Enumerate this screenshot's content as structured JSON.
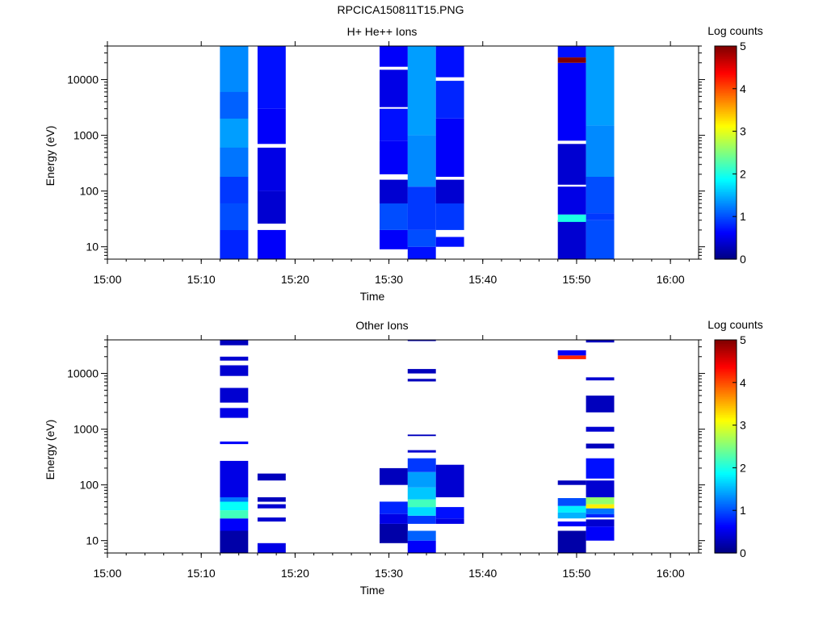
{
  "figure_title": "RPCICA150811T15.PNG",
  "chart_data": [
    {
      "type": "heatmap",
      "title": "H+ He++ Ions",
      "xlabel": "Time",
      "ylabel": "Energy (eV)",
      "x_range": [
        "15:00",
        "16:03"
      ],
      "y_scale": "log",
      "ylim": [
        6,
        40000
      ],
      "xticks": [
        "15:00",
        "15:10",
        "15:20",
        "15:30",
        "15:40",
        "15:50",
        "16:00"
      ],
      "yticks": [
        "10",
        "100",
        "1000",
        "10000"
      ],
      "colorbar": {
        "label": "Log counts",
        "range": [
          0,
          5
        ],
        "ticks": [
          "0",
          "1",
          "2",
          "3",
          "4",
          "5"
        ]
      },
      "columns": [
        {
          "t_start": "15:12",
          "t_end": "15:15",
          "bins": [
            [
              6,
              40000,
              1.1
            ],
            [
              6,
              20,
              0.8
            ],
            [
              20,
              60,
              1.0
            ],
            [
              60,
              180,
              0.9
            ],
            [
              180,
              600,
              1.2
            ],
            [
              600,
              2000,
              1.4
            ],
            [
              2000,
              6000,
              1.1
            ],
            [
              6000,
              40000,
              1.3
            ]
          ]
        },
        {
          "t_start": "15:16",
          "t_end": "15:19",
          "bins": [
            [
              6,
              20,
              0.6
            ],
            [
              26,
              100,
              0.4
            ],
            [
              100,
              600,
              0.5
            ],
            [
              700,
              3000,
              0.6
            ],
            [
              3000,
              40000,
              0.7
            ]
          ]
        },
        {
          "t_start": "15:29",
          "t_end": "15:32",
          "bins": [
            [
              9,
              20,
              0.6
            ],
            [
              20,
              60,
              1.0
            ],
            [
              60,
              160,
              0.4
            ],
            [
              200,
              800,
              0.6
            ],
            [
              800,
              3000,
              0.7
            ],
            [
              3200,
              15000,
              0.5
            ],
            [
              17000,
              40000,
              0.6
            ]
          ]
        },
        {
          "t_start": "15:32",
          "t_end": "15:35",
          "bins": [
            [
              6,
              10,
              0.7
            ],
            [
              10,
              20,
              1.0
            ],
            [
              20,
              120,
              0.9
            ],
            [
              120,
              1000,
              1.3
            ],
            [
              1000,
              40000,
              1.4
            ]
          ]
        },
        {
          "t_start": "15:35",
          "t_end": "15:38",
          "bins": [
            [
              10,
              15,
              0.7
            ],
            [
              20,
              60,
              0.9
            ],
            [
              60,
              160,
              0.4
            ],
            [
              180,
              2000,
              0.6
            ],
            [
              2000,
              9500,
              0.8
            ],
            [
              11000,
              40000,
              0.7
            ]
          ]
        },
        {
          "t_start": "15:48",
          "t_end": "15:51",
          "bins": [
            [
              6,
              30,
              0.4
            ],
            [
              28,
              38,
              2.0
            ],
            [
              38,
              120,
              0.5
            ],
            [
              130,
              700,
              0.4
            ],
            [
              800,
              20000,
              0.6
            ],
            [
              20000,
              25000,
              5.0
            ],
            [
              25000,
              40000,
              0.7
            ]
          ]
        },
        {
          "t_start": "15:51",
          "t_end": "15:54",
          "bins": [
            [
              6,
              30,
              1.0
            ],
            [
              30,
              40,
              0.9
            ],
            [
              40,
              180,
              1.0
            ],
            [
              180,
              1500,
              1.3
            ],
            [
              1500,
              40000,
              1.4
            ]
          ]
        }
      ]
    },
    {
      "type": "heatmap",
      "title": "Other Ions",
      "xlabel": "Time",
      "ylabel": "Energy (eV)",
      "x_range": [
        "15:00",
        "16:03"
      ],
      "y_scale": "log",
      "ylim": [
        6,
        40000
      ],
      "xticks": [
        "15:00",
        "15:10",
        "15:20",
        "15:30",
        "15:40",
        "15:50",
        "16:00"
      ],
      "yticks": [
        "10",
        "100",
        "1000",
        "10000"
      ],
      "colorbar": {
        "label": "Log counts",
        "range": [
          0,
          5
        ],
        "ticks": [
          "0",
          "1",
          "2",
          "3",
          "4",
          "5"
        ]
      },
      "columns": [
        {
          "t_start": "15:12",
          "t_end": "15:15",
          "bins": [
            [
              6,
              15,
              0.2
            ],
            [
              15,
              25,
              0.6
            ],
            [
              25,
              35,
              2.2
            ],
            [
              35,
              50,
              1.9
            ],
            [
              50,
              60,
              1.2
            ],
            [
              60,
              270,
              0.5
            ],
            [
              540,
              600,
              0.6
            ],
            [
              1600,
              2400,
              0.5
            ],
            [
              3000,
              5500,
              0.4
            ],
            [
              9000,
              14000,
              0.4
            ],
            [
              17000,
              20000,
              0.4
            ],
            [
              32000,
              40000,
              0.3
            ]
          ]
        },
        {
          "t_start": "15:16",
          "t_end": "15:19",
          "bins": [
            [
              6,
              9,
              0.5
            ],
            [
              22,
              26,
              0.4
            ],
            [
              38,
              45,
              0.4
            ],
            [
              50,
              60,
              0.3
            ],
            [
              120,
              160,
              0.3
            ]
          ]
        },
        {
          "t_start": "15:29",
          "t_end": "15:32",
          "bins": [
            [
              9,
              20,
              0.2
            ],
            [
              20,
              30,
              0.5
            ],
            [
              30,
              50,
              0.8
            ],
            [
              100,
              200,
              0.3
            ]
          ]
        },
        {
          "t_start": "15:32",
          "t_end": "15:35",
          "bins": [
            [
              6,
              10,
              0.6
            ],
            [
              10,
              15,
              1.1
            ],
            [
              20,
              28,
              0.9
            ],
            [
              28,
              40,
              1.7
            ],
            [
              40,
              55,
              2.2
            ],
            [
              55,
              90,
              1.6
            ],
            [
              90,
              170,
              1.4
            ],
            [
              170,
              300,
              0.9
            ],
            [
              380,
              420,
              0.4
            ],
            [
              750,
              800,
              0.3
            ],
            [
              7200,
              8000,
              0.3
            ],
            [
              10000,
              12000,
              0.3
            ],
            [
              38000,
              40000,
              0.3
            ]
          ]
        },
        {
          "t_start": "15:35",
          "t_end": "15:38",
          "bins": [
            [
              20,
              25,
              0.5
            ],
            [
              25,
              40,
              0.7
            ],
            [
              60,
              230,
              0.4
            ]
          ]
        },
        {
          "t_start": "15:48",
          "t_end": "15:51",
          "bins": [
            [
              6,
              15,
              0.2
            ],
            [
              18,
              22,
              0.6
            ],
            [
              25,
              32,
              1.5
            ],
            [
              32,
              42,
              1.8
            ],
            [
              42,
              58,
              1.0
            ],
            [
              100,
              120,
              0.3
            ],
            [
              18000,
              21000,
              4.2
            ],
            [
              21000,
              26000,
              0.6
            ]
          ]
        },
        {
          "t_start": "15:51",
          "t_end": "15:54",
          "bins": [
            [
              10,
              18,
              0.6
            ],
            [
              18,
              24,
              0.4
            ],
            [
              26,
              30,
              0.8
            ],
            [
              30,
              38,
              1.2
            ],
            [
              38,
              45,
              3.2
            ],
            [
              45,
              60,
              2.6
            ],
            [
              60,
              120,
              0.4
            ],
            [
              130,
              300,
              0.7
            ],
            [
              450,
              550,
              0.3
            ],
            [
              900,
              1100,
              0.4
            ],
            [
              2000,
              4000,
              0.3
            ],
            [
              7500,
              8500,
              0.4
            ],
            [
              36000,
              40000,
              0.3
            ]
          ]
        }
      ]
    }
  ]
}
